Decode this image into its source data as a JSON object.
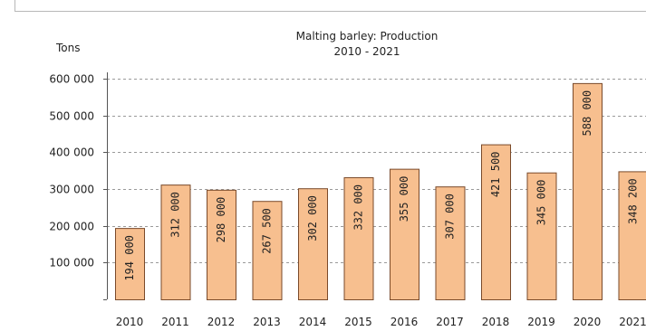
{
  "chart_data": {
    "type": "bar",
    "title": "Malting barley: Production",
    "subtitle": "2010 - 2021",
    "ylabel": "Tons",
    "xlabel": "",
    "categories": [
      "2010",
      "2011",
      "2012",
      "2013",
      "2014",
      "2015",
      "2016",
      "2017",
      "2018",
      "2019",
      "2020",
      "2021"
    ],
    "values": [
      194000,
      312000,
      298000,
      267500,
      302000,
      332000,
      355000,
      307000,
      421500,
      345000,
      588000,
      348200
    ],
    "value_labels": [
      "194 000",
      "312 000",
      "298 000",
      "267 500",
      "302 000",
      "332 000",
      "355 000",
      "307 000",
      "421 500",
      "345 000",
      "588 000",
      "348 200"
    ],
    "ylim": [
      0,
      600000
    ],
    "yticks": [
      100000,
      200000,
      300000,
      400000,
      500000,
      600000
    ],
    "ytick_labels": [
      "100 000",
      "200 000",
      "300 000",
      "400 000",
      "500 000",
      "600 000"
    ],
    "grid": true,
    "bar_color": "#f7bf8f",
    "bar_edge_color": "#7a4a2a",
    "grid_color": "#9a9a9a",
    "value_label_orientation": "vertical"
  }
}
